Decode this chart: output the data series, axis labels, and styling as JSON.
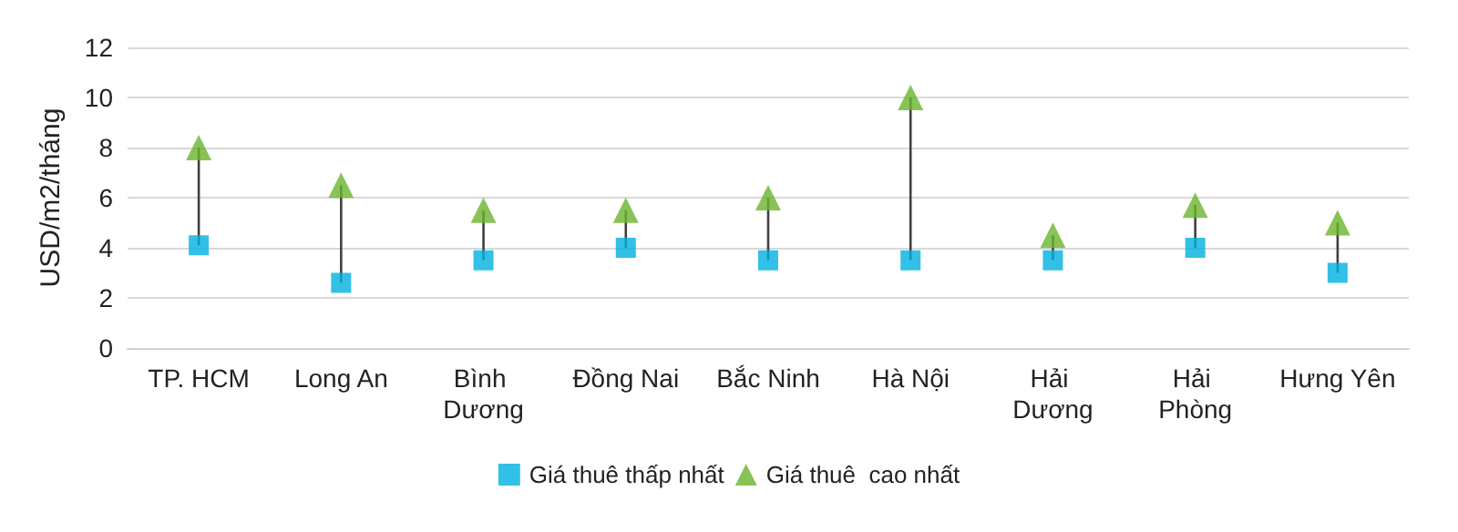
{
  "chart_data": {
    "type": "scatter",
    "ylabel": "USD/m2/tháng",
    "categories": [
      "TP. HCM",
      "Long An",
      "Bình Dương",
      "Đồng Nai",
      "Bắc Ninh",
      "Hà Nội",
      "Hải Dương",
      "Hải Phòng",
      "Hưng Yên"
    ],
    "series": [
      {
        "name": "Giá thuê thấp nhất",
        "color": "#00b0e0",
        "marker": "square",
        "values": [
          4.1,
          2.6,
          3.5,
          4.0,
          3.5,
          3.5,
          3.5,
          4.0,
          3.0
        ]
      },
      {
        "name": "Giá thuê  cao nhất",
        "color": "#6ab42d",
        "marker": "triangle",
        "values": [
          8.0,
          6.5,
          5.5,
          5.5,
          6.0,
          10.0,
          4.5,
          5.7,
          5.0
        ]
      }
    ],
    "ylim": [
      0,
      12
    ],
    "yticks": [
      0,
      2,
      4,
      6,
      8,
      10,
      12
    ],
    "grid": "y",
    "legend": "bottom"
  }
}
